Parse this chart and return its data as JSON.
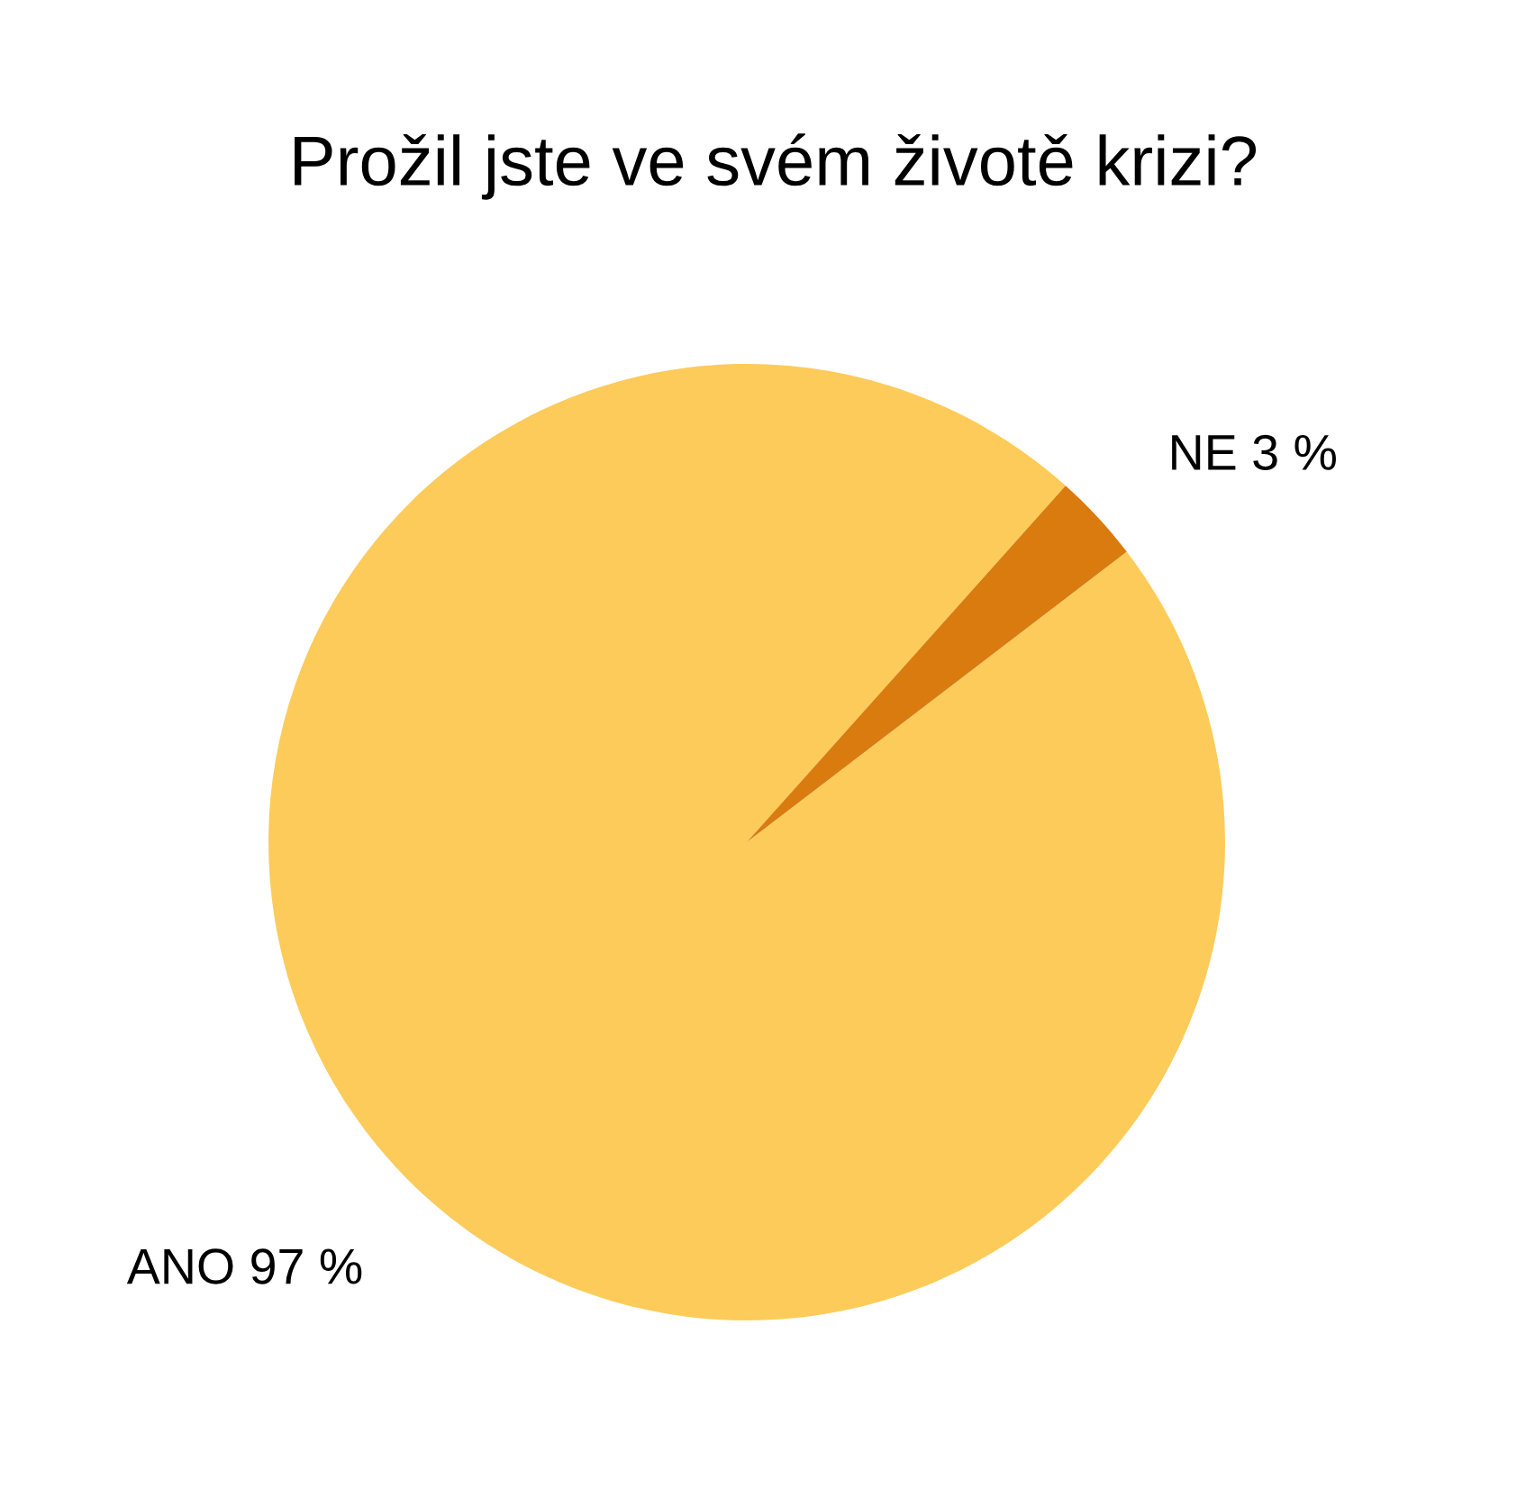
{
  "chart_data": {
    "type": "pie",
    "title": "Prožil jste ve svém životě krizi?",
    "categories": [
      "ANO",
      "NE"
    ],
    "values": [
      97,
      3
    ],
    "colors": [
      "#fdcb5a",
      "#d97b0f"
    ],
    "value_labels": [
      "97 %",
      "3 %"
    ]
  }
}
